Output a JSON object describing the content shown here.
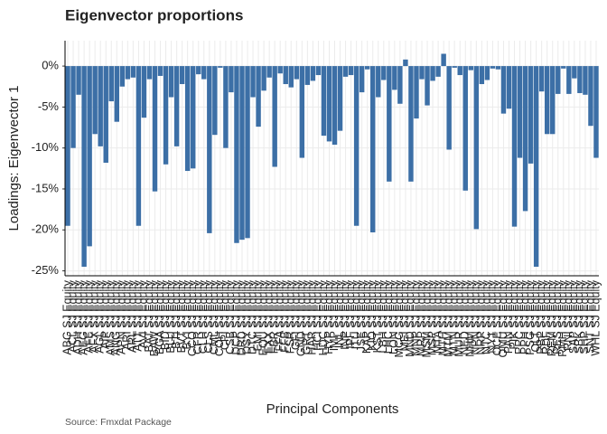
{
  "chart_data": {
    "type": "bar",
    "title": "Eigenvector proportions",
    "x_label": "Principal Components",
    "y_label": "Loadings: Eigenvector 1",
    "caption": "Source: Fmxdat Package",
    "color": "#3c6fa6",
    "grid": true,
    "ylim": [
      -25.6,
      3.1
    ],
    "yticks": [
      {
        "value": -25,
        "label": "-25%"
      },
      {
        "value": -20,
        "label": "-20%"
      },
      {
        "value": -15,
        "label": "-15%"
      },
      {
        "value": -10,
        "label": "-10%"
      },
      {
        "value": -5,
        "label": "-5%"
      },
      {
        "value": 0,
        "label": "0%"
      }
    ],
    "categories": [
      "ABG SJ Equity",
      "ACL SJ Equity",
      "ADH SJ Equity",
      "AEG SJ Equity",
      "AFE SJ Equity",
      "AFX SJ Equity",
      "AGL SJ Equity",
      "AIP SJ Equity",
      "AMS SJ Equity",
      "ANG SJ Equity",
      "APN SJ Equity",
      "ARI SJ Equity",
      "ARL SJ Equity",
      "ATT SJ Equity",
      "AVI SJ Equity",
      "BAT SJ Equity",
      "BAW SJ Equity",
      "BGA SJ Equity",
      "BID SJ Equity",
      "BLU SJ Equity",
      "BTI SJ Equity",
      "BVT SJ Equity",
      "BYI SJ Equity",
      "CCO SJ Equity",
      "CFR SJ Equity",
      "CLH SJ Equity",
      "CLS SJ Equity",
      "CML SJ Equity",
      "COH SJ Equity",
      "CPI SJ Equity",
      "CSB SJ Equity",
      "DCP SJ Equity",
      "DRD SJ Equity",
      "DSY SJ Equity",
      "DTC SJ Equity",
      "EMI SJ Equity",
      "EQU SJ Equity",
      "EXX SJ Equity",
      "FBR SJ Equity",
      "FFA SJ Equity",
      "FFB SJ Equity",
      "FSR SJ Equity",
      "GFI SJ Equity",
      "GND SJ Equity",
      "GRT SJ Equity",
      "HAR SJ Equity",
      "HCI SJ Equity",
      "HDC SJ Equity",
      "HYP SJ Equity",
      "IMP SJ Equity",
      "INL SJ Equity",
      "INP SJ Equity",
      "IPF SJ Equity",
      "ITU SJ Equity",
      "JSE SJ Equity",
      "KAP SJ Equity",
      "KIO SJ Equity",
      "KST SJ Equity",
      "LBH SJ Equity",
      "LHC SJ Equity",
      "LON SJ Equity",
      "MCG SJ Equity",
      "MEI SJ Equity",
      "MND SJ Equity",
      "MNP SJ Equity",
      "MRP SJ Equity",
      "MSM SJ Equity",
      "MSP SJ Equity",
      "MTA SJ Equity",
      "MTH SJ Equity",
      "MTM SJ Equity",
      "MTN SJ Equity",
      "MUR SJ Equity",
      "NED SJ Equity",
      "NHM SJ Equity",
      "NPN SJ Equity",
      "NRP SJ Equity",
      "NTC SJ Equity",
      "NY1 SJ Equity",
      "OCE SJ Equity",
      "OMU SJ Equity",
      "PAN SJ Equity",
      "PIK SJ Equity",
      "PPC SJ Equity",
      "PPH SJ Equity",
      "PSG SJ Equity",
      "QLT SJ Equity",
      "RBP SJ Equity",
      "RDF SJ Equity",
      "REM SJ Equity",
      "RES SJ Equity",
      "RMH SJ Equity",
      "RNI SJ Equity",
      "SAP SJ Equity",
      "SBK SJ Equity",
      "SHP SJ Equity",
      "SNT SJ Equity",
      "WHL SJ Equity"
    ],
    "values": [
      -19.5,
      -10,
      -3.5,
      -24.5,
      -22,
      -8.3,
      -9.8,
      -11.8,
      -4.3,
      -6.8,
      -2.5,
      -1.6,
      -1.4,
      -19.5,
      -6.3,
      -1.6,
      -15.3,
      -1.2,
      -12,
      -3.8,
      -9.8,
      -2.2,
      -12.8,
      -12.5,
      -1,
      -1.6,
      -20.4,
      -8.4,
      -0.2,
      -10,
      -3.2,
      -21.6,
      -21.2,
      -21,
      -3.8,
      -7.4,
      -3,
      -1.4,
      -12.3,
      -0.9,
      -2.2,
      -2.6,
      -1.6,
      -11.2,
      -2.3,
      -1.8,
      -1.1,
      -8.5,
      -9.2,
      -9.6,
      -7.9,
      -1.3,
      -1.1,
      -19.5,
      -3.2,
      -0.4,
      -20.3,
      -3.8,
      -1.7,
      -14.1,
      -2.9,
      -4.6,
      0.8,
      -14.1,
      -6.4,
      -1.6,
      -4.8,
      -1.8,
      -1.3,
      1.5,
      -10.2,
      -0.2,
      -1.1,
      -15.2,
      -0.5,
      -19.9,
      -2.2,
      -1.7,
      -0.3,
      -0.4,
      -5.8,
      -5.2,
      -19.6,
      -11.2,
      -17.7,
      -11.9,
      -24.5,
      -3.1,
      -8.3,
      -8.3,
      -3.4,
      -0.3,
      -3.4,
      -1.5,
      -3.3,
      -3.5,
      -7.3,
      -11.2
    ]
  }
}
